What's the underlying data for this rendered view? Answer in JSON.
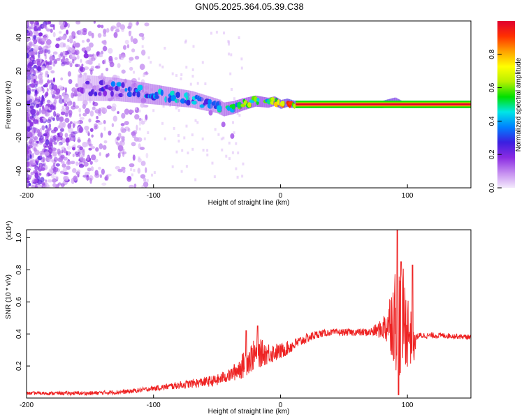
{
  "title": "GN05.2025.364.05.39.C38",
  "colors": {
    "line": "#ee2222",
    "axis": "#000000",
    "ridge": "#e8102a",
    "colormap": [
      "#f4eafc",
      "#c48cf0",
      "#8a2be2",
      "#3b1fe0",
      "#0080ff",
      "#00e6e6",
      "#00e000",
      "#b8f000",
      "#ffff00",
      "#ffa000",
      "#ff3000",
      "#e00030"
    ]
  },
  "chart_data": [
    {
      "type": "heatmap",
      "name": "spectrogram",
      "xlabel": "Height of straight line (km)",
      "ylabel": "Frequency (Hz)",
      "xlim": [
        -200,
        150
      ],
      "ylim": [
        -50,
        50
      ],
      "x_ticks": [
        {
          "value": -200,
          "label": "-200"
        },
        {
          "value": -100,
          "label": "-100"
        },
        {
          "value": 0,
          "label": "0"
        },
        {
          "value": 100,
          "label": "100"
        }
      ],
      "y_ticks": [
        {
          "value": 40,
          "label": "40"
        },
        {
          "value": 20,
          "label": "20"
        },
        {
          "value": 0,
          "label": "0"
        },
        {
          "value": -20,
          "label": "-20"
        },
        {
          "value": -40,
          "label": "-40"
        }
      ],
      "colorbar": {
        "label": "Normalized spectral amplitude",
        "range": [
          0,
          1
        ],
        "ticks": [
          {
            "value": 0.0,
            "label": "0.0"
          },
          {
            "value": 0.2,
            "label": "0.2"
          },
          {
            "value": 0.4,
            "label": "0.4"
          },
          {
            "value": 0.6,
            "label": "0.6"
          },
          {
            "value": 0.8,
            "label": "0.8"
          }
        ]
      },
      "ridge": {
        "x": [
          -160,
          -130,
          -110,
          -90,
          -70,
          -60,
          -50,
          -45,
          -38,
          -30,
          -20,
          -10,
          -5,
          0,
          5,
          10,
          15,
          30,
          60,
          80,
          85,
          90,
          95,
          100,
          120,
          150
        ],
        "freq": [
          10,
          9,
          7,
          5,
          3,
          1,
          -1,
          -3,
          -2,
          0,
          2,
          1,
          2,
          0,
          1,
          0,
          0,
          0,
          0,
          0,
          1,
          2,
          0,
          0,
          0,
          0
        ],
        "amplitude": [
          0.15,
          0.35,
          0.4,
          0.45,
          0.42,
          0.4,
          0.42,
          0.5,
          0.55,
          0.6,
          0.65,
          0.6,
          0.7,
          0.8,
          0.85,
          0.95,
          1.0,
          1.0,
          1.0,
          1.0,
          0.8,
          0.7,
          0.85,
          1.0,
          1.0,
          1.0
        ],
        "extra_branch": {
          "x": [
            -55,
            -45,
            -38
          ],
          "freq": [
            -5,
            -12,
            -19
          ]
        }
      }
    },
    {
      "type": "line",
      "name": "snr",
      "xlabel": "Height of straight line (km)",
      "ylabel": "SNR (10 * v/v)",
      "y_scale_note": "(x10⁴)",
      "xlim": [
        -200,
        150
      ],
      "ylim": [
        0,
        1.05
      ],
      "x_ticks": [
        {
          "value": -200,
          "label": "-200"
        },
        {
          "value": -100,
          "label": "-100"
        },
        {
          "value": 0,
          "label": "0"
        },
        {
          "value": 100,
          "label": "100"
        }
      ],
      "y_ticks": [
        {
          "value": 0.2,
          "label": "0.2"
        },
        {
          "value": 0.4,
          "label": "0.4"
        },
        {
          "value": 0.6,
          "label": "0.6"
        },
        {
          "value": 0.8,
          "label": "0.8"
        },
        {
          "value": 1.0,
          "label": "1.0"
        }
      ],
      "envelope": {
        "x": [
          -200,
          -150,
          -120,
          -100,
          -80,
          -60,
          -50,
          -45,
          -40,
          -30,
          -25,
          -20,
          -15,
          -10,
          0,
          10,
          20,
          30,
          40,
          50,
          60,
          70,
          80,
          85,
          88,
          92,
          95,
          98,
          102,
          105,
          107,
          110,
          130,
          150
        ],
        "y": [
          0.03,
          0.03,
          0.04,
          0.06,
          0.08,
          0.1,
          0.11,
          0.13,
          0.14,
          0.2,
          0.24,
          0.27,
          0.28,
          0.28,
          0.29,
          0.33,
          0.37,
          0.4,
          0.41,
          0.41,
          0.41,
          0.41,
          0.43,
          0.47,
          0.5,
          0.5,
          0.5,
          0.47,
          0.4,
          0.3,
          0.38,
          0.39,
          0.39,
          0.38
        ]
      },
      "noise": {
        "x": [
          -200,
          -100,
          -40,
          -30,
          -20,
          -10,
          0,
          20,
          40,
          70,
          80,
          86,
          90,
          94,
          98,
          102,
          105,
          107,
          150
        ],
        "amplitude": [
          0.01,
          0.015,
          0.04,
          0.08,
          0.1,
          0.07,
          0.05,
          0.03,
          0.02,
          0.025,
          0.06,
          0.18,
          0.32,
          0.38,
          0.3,
          0.2,
          0.1,
          0.02,
          0.015
        ]
      },
      "peaks": [
        {
          "x": -27,
          "y": 0.42
        },
        {
          "x": -18,
          "y": 0.45
        },
        {
          "x": 92,
          "y": 1.05
        },
        {
          "x": 95,
          "y": 0.85
        },
        {
          "x": 104,
          "y": 0.83
        },
        {
          "x": 93,
          "y": 0.02
        }
      ]
    }
  ]
}
